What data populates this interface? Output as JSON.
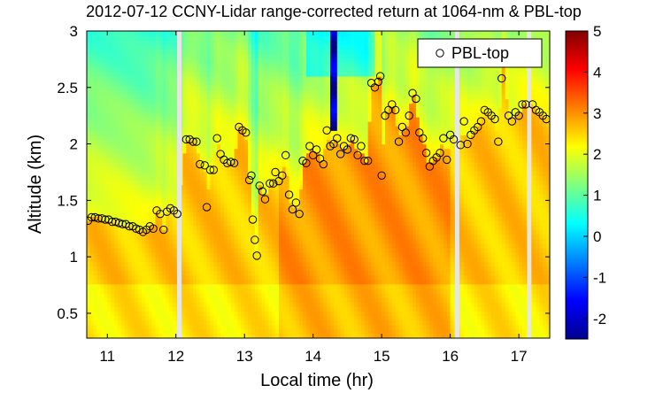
{
  "chart_data": {
    "type": "heatmap",
    "title": "2012-07-12 CCNY-Lidar range-corrected return at 1064-nm & PBL-top",
    "xlabel": "Local time (hr)",
    "ylabel": "Altitude (km)",
    "xlim": [
      10.7,
      17.45
    ],
    "ylim": [
      0.28,
      3.0
    ],
    "x_ticks": [
      11,
      12,
      13,
      14,
      15,
      16,
      17
    ],
    "y_ticks": [
      0.5,
      1,
      1.5,
      2,
      2.5,
      3
    ],
    "y_tick_labels": [
      "0.5",
      "1",
      "1.5",
      "2",
      "2.5",
      "3"
    ],
    "colorbar": {
      "range": [
        -2.5,
        5
      ],
      "ticks": [
        -2,
        -1,
        0,
        1,
        2,
        3,
        4,
        5
      ],
      "colormap": "jet"
    },
    "data_gaps_hr": [
      12.05,
      16.1,
      17.15
    ],
    "legend": {
      "entries": [
        "PBL-top"
      ],
      "position": "top-right"
    },
    "series": [
      {
        "name": "PBL-top",
        "marker": "open-circle",
        "points": [
          [
            10.72,
            1.32
          ],
          [
            10.77,
            1.35
          ],
          [
            10.82,
            1.35
          ],
          [
            10.87,
            1.34
          ],
          [
            10.92,
            1.34
          ],
          [
            10.97,
            1.33
          ],
          [
            11.02,
            1.33
          ],
          [
            11.07,
            1.31
          ],
          [
            11.12,
            1.31
          ],
          [
            11.17,
            1.3
          ],
          [
            11.22,
            1.29
          ],
          [
            11.27,
            1.29
          ],
          [
            11.32,
            1.27
          ],
          [
            11.37,
            1.27
          ],
          [
            11.42,
            1.25
          ],
          [
            11.47,
            1.24
          ],
          [
            11.52,
            1.22
          ],
          [
            11.57,
            1.24
          ],
          [
            11.62,
            1.27
          ],
          [
            11.67,
            1.25
          ],
          [
            11.72,
            1.41
          ],
          [
            11.77,
            1.38
          ],
          [
            11.82,
            1.24
          ],
          [
            11.87,
            1.4
          ],
          [
            11.92,
            1.43
          ],
          [
            11.97,
            1.41
          ],
          [
            12.02,
            1.38
          ],
          [
            12.15,
            2.04
          ],
          [
            12.2,
            2.04
          ],
          [
            12.25,
            2.02
          ],
          [
            12.3,
            2.02
          ],
          [
            12.35,
            1.82
          ],
          [
            12.42,
            1.81
          ],
          [
            12.45,
            1.44
          ],
          [
            12.5,
            1.77
          ],
          [
            12.55,
            1.77
          ],
          [
            12.6,
            2.05
          ],
          [
            12.65,
            1.91
          ],
          [
            12.7,
            1.86
          ],
          [
            12.75,
            1.83
          ],
          [
            12.8,
            1.84
          ],
          [
            12.85,
            1.83
          ],
          [
            12.92,
            2.15
          ],
          [
            12.97,
            2.12
          ],
          [
            13.02,
            2.1
          ],
          [
            13.07,
            1.68
          ],
          [
            13.1,
            1.72
          ],
          [
            13.12,
            1.33
          ],
          [
            13.15,
            1.15
          ],
          [
            13.18,
            1.01
          ],
          [
            13.22,
            1.63
          ],
          [
            13.26,
            1.58
          ],
          [
            13.3,
            1.51
          ],
          [
            13.37,
            1.65
          ],
          [
            13.42,
            1.65
          ],
          [
            13.45,
            1.75
          ],
          [
            13.5,
            1.67
          ],
          [
            13.55,
            1.72
          ],
          [
            13.6,
            1.9
          ],
          [
            13.65,
            1.55
          ],
          [
            13.7,
            1.42
          ],
          [
            13.75,
            1.48
          ],
          [
            13.8,
            1.38
          ],
          [
            13.85,
            1.85
          ],
          [
            13.9,
            1.83
          ],
          [
            13.95,
            1.98
          ],
          [
            14.0,
            1.9
          ],
          [
            14.05,
            1.95
          ],
          [
            14.1,
            1.87
          ],
          [
            14.15,
            1.82
          ],
          [
            14.2,
            2.12
          ],
          [
            14.25,
            1.98
          ],
          [
            14.3,
            2.0
          ],
          [
            14.35,
            2.05
          ],
          [
            14.4,
            1.91
          ],
          [
            14.45,
            1.98
          ],
          [
            14.5,
            1.95
          ],
          [
            14.55,
            2.05
          ],
          [
            14.6,
            2.04
          ],
          [
            14.65,
            1.9
          ],
          [
            14.7,
            1.98
          ],
          [
            14.75,
            1.85
          ],
          [
            14.8,
            1.85
          ],
          [
            14.85,
            2.54
          ],
          [
            14.9,
            2.5
          ],
          [
            14.95,
            2.55
          ],
          [
            14.98,
            2.6
          ],
          [
            15.0,
            1.72
          ],
          [
            15.05,
            2.25
          ],
          [
            15.1,
            2.3
          ],
          [
            15.15,
            2.35
          ],
          [
            15.2,
            2.3
          ],
          [
            15.25,
            2.02
          ],
          [
            15.3,
            2.15
          ],
          [
            15.35,
            2.1
          ],
          [
            15.4,
            2.25
          ],
          [
            15.45,
            2.45
          ],
          [
            15.5,
            2.4
          ],
          [
            15.55,
            2.1
          ],
          [
            15.6,
            2.05
          ],
          [
            15.65,
            1.92
          ],
          [
            15.7,
            1.8
          ],
          [
            15.75,
            1.85
          ],
          [
            15.8,
            1.88
          ],
          [
            15.85,
            1.92
          ],
          [
            15.9,
            2.05
          ],
          [
            15.95,
            1.86
          ],
          [
            16.0,
            2.08
          ],
          [
            16.05,
            2.04
          ],
          [
            16.15,
            1.99
          ],
          [
            16.2,
            2.2
          ],
          [
            16.25,
            2.0
          ],
          [
            16.3,
            2.08
          ],
          [
            16.35,
            2.12
          ],
          [
            16.4,
            2.15
          ],
          [
            16.45,
            2.2
          ],
          [
            16.5,
            2.3
          ],
          [
            16.55,
            2.28
          ],
          [
            16.6,
            2.25
          ],
          [
            16.65,
            2.22
          ],
          [
            16.7,
            2.02
          ],
          [
            16.75,
            2.58
          ],
          [
            16.78,
            2.72
          ],
          [
            16.85,
            2.25
          ],
          [
            16.9,
            2.2
          ],
          [
            16.95,
            2.28
          ],
          [
            17.0,
            2.25
          ],
          [
            17.05,
            2.35
          ],
          [
            17.1,
            2.35
          ],
          [
            17.2,
            2.35
          ],
          [
            17.25,
            2.3
          ],
          [
            17.3,
            2.28
          ],
          [
            17.35,
            2.25
          ],
          [
            17.4,
            2.22
          ]
        ]
      }
    ]
  }
}
